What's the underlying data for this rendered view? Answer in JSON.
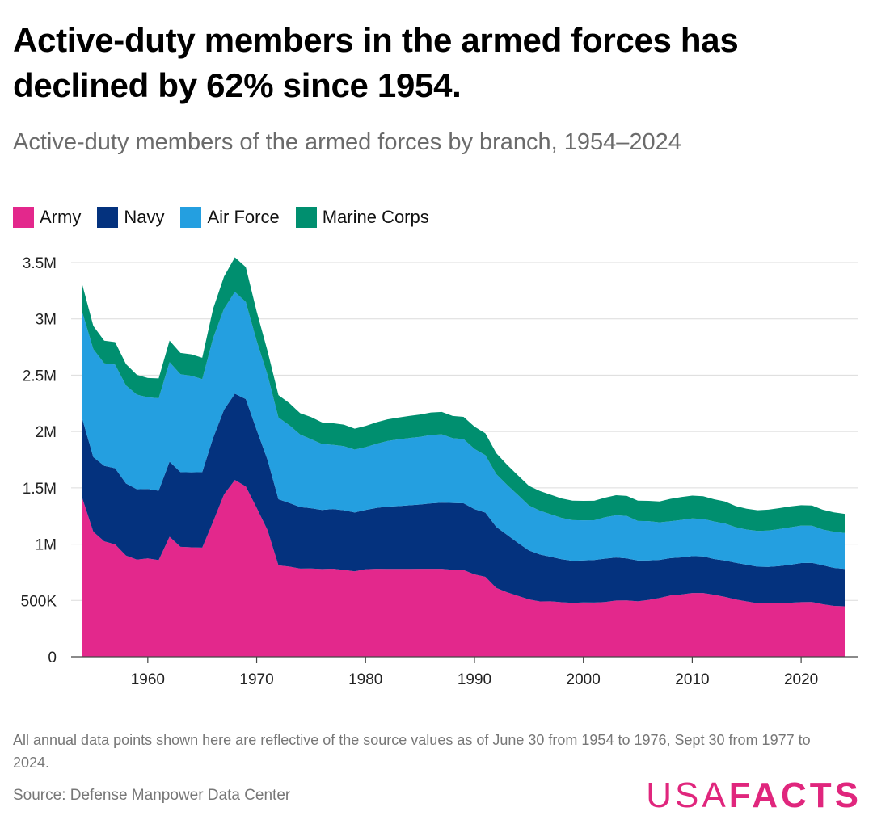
{
  "title": "Active-duty members in the armed forces has declined by 62% since 1954.",
  "subtitle": "Active-duty members of the armed forces by branch, 1954–2024",
  "note": "All annual data points shown here are reflective of the source values as of June 30 from 1954 to 1976, Sept 30 from 1977 to 2024.",
  "source": "Source: Defense Manpower Data Center",
  "logo": {
    "usa": "USA",
    "facts": "FACTS"
  },
  "chart_data": {
    "type": "area",
    "stacked": true,
    "title": "Active-duty members of the armed forces by branch, 1954–2024",
    "xlabel": "",
    "ylabel": "",
    "xlim": [
      1954,
      2024
    ],
    "ylim": [
      0,
      3500000
    ],
    "grid": true,
    "legend_position": "top-left",
    "x_ticks": [
      1960,
      1970,
      1980,
      1990,
      2000,
      2010,
      2020
    ],
    "y_ticks": [
      {
        "value": 0,
        "label": "0"
      },
      {
        "value": 500000,
        "label": "500K"
      },
      {
        "value": 1000000,
        "label": "1M"
      },
      {
        "value": 1500000,
        "label": "1.5M"
      },
      {
        "value": 2000000,
        "label": "2M"
      },
      {
        "value": 2500000,
        "label": "2.5M"
      },
      {
        "value": 3000000,
        "label": "3M"
      },
      {
        "value": 3500000,
        "label": "3.5M"
      }
    ],
    "x": [
      1954,
      1955,
      1956,
      1957,
      1958,
      1959,
      1960,
      1961,
      1962,
      1963,
      1964,
      1965,
      1966,
      1967,
      1968,
      1969,
      1970,
      1971,
      1972,
      1973,
      1974,
      1975,
      1976,
      1977,
      1978,
      1979,
      1980,
      1981,
      1982,
      1983,
      1984,
      1985,
      1986,
      1987,
      1988,
      1989,
      1990,
      1991,
      1992,
      1993,
      1994,
      1995,
      1996,
      1997,
      1998,
      1999,
      2000,
      2001,
      2002,
      2003,
      2004,
      2005,
      2006,
      2007,
      2008,
      2009,
      2010,
      2011,
      2012,
      2013,
      2014,
      2015,
      2016,
      2017,
      2018,
      2019,
      2020,
      2021,
      2022,
      2023,
      2024
    ],
    "series": [
      {
        "name": "Army",
        "color": "#e3288c",
        "values": [
          1405000,
          1110000,
          1025000,
          998000,
          898000,
          862000,
          873000,
          858000,
          1066000,
          976000,
          972000,
          969000,
          1200000,
          1442000,
          1570000,
          1512000,
          1322000,
          1124000,
          811000,
          801000,
          783000,
          784000,
          779000,
          782000,
          771000,
          758000,
          777000,
          781000,
          780000,
          780000,
          780000,
          781000,
          781000,
          781000,
          772000,
          770000,
          732000,
          710000,
          611000,
          572000,
          541000,
          509000,
          491000,
          492000,
          484000,
          479000,
          482000,
          481000,
          486000,
          499000,
          500000,
          492000,
          505000,
          522000,
          544000,
          553000,
          566000,
          566000,
          550000,
          532000,
          508000,
          491000,
          475000,
          476000,
          476000,
          480000,
          485000,
          486000,
          466000,
          452000,
          448000
        ]
      },
      {
        "name": "Navy",
        "color": "#04327e",
        "values": [
          702000,
          662000,
          670000,
          676000,
          640000,
          625000,
          617000,
          616000,
          666000,
          664000,
          666000,
          671000,
          743000,
          751000,
          765000,
          776000,
          692000,
          623000,
          588000,
          564000,
          546000,
          535000,
          525000,
          530000,
          530000,
          523000,
          527000,
          540000,
          553000,
          558000,
          565000,
          571000,
          581000,
          587000,
          593000,
          593000,
          579000,
          570000,
          542000,
          510000,
          469000,
          435000,
          417000,
          396000,
          382000,
          373000,
          373000,
          378000,
          385000,
          382000,
          373000,
          362000,
          350000,
          338000,
          332000,
          329000,
          328000,
          325000,
          318000,
          322000,
          326000,
          327000,
          325000,
          322000,
          329000,
          337000,
          347000,
          348000,
          346000,
          337000,
          332000
        ]
      },
      {
        "name": "Air Force",
        "color": "#249fe0",
        "values": [
          948000,
          960000,
          910000,
          920000,
          871000,
          840000,
          814000,
          821000,
          884000,
          868000,
          857000,
          825000,
          886000,
          897000,
          905000,
          862000,
          791000,
          755000,
          726000,
          691000,
          644000,
          613000,
          585000,
          570000,
          569000,
          559000,
          557000,
          570000,
          583000,
          592000,
          597000,
          601000,
          608000,
          607000,
          576000,
          570000,
          535000,
          510000,
          470000,
          444000,
          426000,
          400000,
          389000,
          377000,
          367000,
          361000,
          356000,
          353000,
          368000,
          375000,
          377000,
          352000,
          349000,
          333000,
          327000,
          333000,
          334000,
          333000,
          333000,
          329000,
          316000,
          312000,
          317000,
          323000,
          329000,
          332000,
          333000,
          330000,
          318000,
          321000,
          319000
        ]
      },
      {
        "name": "Marine Corps",
        "color": "#008f6f",
        "values": [
          244000,
          205000,
          201000,
          200000,
          189000,
          176000,
          171000,
          177000,
          191000,
          190000,
          190000,
          190000,
          261000,
          285000,
          307000,
          310000,
          260000,
          212000,
          198000,
          196000,
          189000,
          196000,
          192000,
          192000,
          191000,
          185000,
          188000,
          191000,
          192000,
          194000,
          196000,
          198000,
          199000,
          199000,
          197000,
          197000,
          197000,
          194000,
          185000,
          178000,
          174000,
          174000,
          175000,
          174000,
          173000,
          173000,
          173000,
          173000,
          174000,
          178000,
          178000,
          180000,
          180000,
          186000,
          199000,
          203000,
          203000,
          201000,
          198000,
          196000,
          188000,
          184000,
          184000,
          185000,
          186000,
          186000,
          181000,
          179000,
          175000,
          172000,
          170000
        ]
      }
    ]
  }
}
